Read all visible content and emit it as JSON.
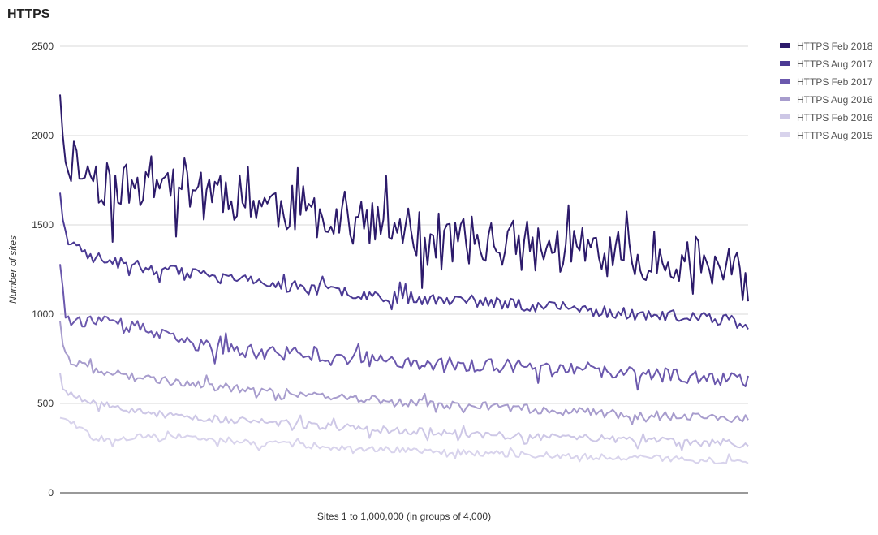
{
  "chart_data": {
    "type": "line",
    "title": "HTTPS",
    "xlabel": "Sites 1 to 1,000,000 (in groups of 4,000)",
    "ylabel": "Number of sites",
    "ylim": [
      0,
      2500
    ],
    "yticks": [
      0,
      500,
      1000,
      1500,
      2000,
      2500
    ],
    "ytick_labels": [
      "0",
      "500",
      "1000",
      "1500",
      "2000",
      "2500"
    ],
    "x_count": 250,
    "grid": true,
    "legend_position": "right",
    "series": [
      {
        "name": "HTTPS Feb 2018",
        "color": "#2d1b6b",
        "trend": [
          [
            0,
            2230
          ],
          [
            1,
            2000
          ],
          [
            2,
            1850
          ],
          [
            5,
            1870
          ],
          [
            10,
            1790
          ],
          [
            20,
            1700
          ],
          [
            30,
            1740
          ],
          [
            40,
            1760
          ],
          [
            60,
            1680
          ],
          [
            80,
            1600
          ],
          [
            100,
            1550
          ],
          [
            120,
            1470
          ],
          [
            140,
            1420
          ],
          [
            160,
            1400
          ],
          [
            180,
            1360
          ],
          [
            200,
            1340
          ],
          [
            220,
            1320
          ],
          [
            230,
            1300
          ],
          [
            240,
            1250
          ],
          [
            249,
            1200
          ]
        ],
        "noise": 140,
        "seed": 11
      },
      {
        "name": "HTTPS Aug 2017",
        "color": "#4b3a94",
        "trend": [
          [
            0,
            1680
          ],
          [
            1,
            1530
          ],
          [
            3,
            1400
          ],
          [
            10,
            1330
          ],
          [
            20,
            1290
          ],
          [
            40,
            1240
          ],
          [
            60,
            1200
          ],
          [
            80,
            1160
          ],
          [
            100,
            1130
          ],
          [
            120,
            1100
          ],
          [
            140,
            1080
          ],
          [
            160,
            1060
          ],
          [
            180,
            1040
          ],
          [
            200,
            1010
          ],
          [
            220,
            990
          ],
          [
            240,
            970
          ],
          [
            249,
            950
          ]
        ],
        "noise": 35,
        "seed": 23
      },
      {
        "name": "HTTPS Feb 2017",
        "color": "#6b58ad",
        "trend": [
          [
            0,
            1280
          ],
          [
            1,
            1150
          ],
          [
            2,
            980
          ],
          [
            10,
            960
          ],
          [
            20,
            940
          ],
          [
            30,
            920
          ],
          [
            40,
            860
          ],
          [
            60,
            800
          ],
          [
            80,
            780
          ],
          [
            100,
            760
          ],
          [
            120,
            740
          ],
          [
            140,
            720
          ],
          [
            160,
            710
          ],
          [
            180,
            690
          ],
          [
            200,
            670
          ],
          [
            220,
            660
          ],
          [
            240,
            640
          ],
          [
            249,
            630
          ]
        ],
        "noise": 40,
        "seed": 37
      },
      {
        "name": "HTTPS Aug 2016",
        "color": "#a79ccd",
        "trend": [
          [
            0,
            960
          ],
          [
            1,
            830
          ],
          [
            3,
            740
          ],
          [
            10,
            700
          ],
          [
            20,
            670
          ],
          [
            30,
            640
          ],
          [
            40,
            620
          ],
          [
            60,
            590
          ],
          [
            80,
            560
          ],
          [
            100,
            540
          ],
          [
            120,
            510
          ],
          [
            140,
            490
          ],
          [
            160,
            480
          ],
          [
            180,
            460
          ],
          [
            200,
            440
          ],
          [
            220,
            430
          ],
          [
            240,
            420
          ],
          [
            249,
            410
          ]
        ],
        "noise": 25,
        "seed": 41
      },
      {
        "name": "HTTPS Feb 2016",
        "color": "#cdc7e6",
        "trend": [
          [
            0,
            670
          ],
          [
            1,
            580
          ],
          [
            5,
            550
          ],
          [
            10,
            520
          ],
          [
            20,
            480
          ],
          [
            30,
            450
          ],
          [
            40,
            430
          ],
          [
            60,
            410
          ],
          [
            80,
            390
          ],
          [
            100,
            370
          ],
          [
            120,
            350
          ],
          [
            140,
            340
          ],
          [
            160,
            320
          ],
          [
            180,
            310
          ],
          [
            200,
            300
          ],
          [
            220,
            290
          ],
          [
            240,
            280
          ],
          [
            249,
            265
          ]
        ],
        "noise": 22,
        "seed": 53
      },
      {
        "name": "HTTPS Aug 2015",
        "color": "#d8d3ec",
        "trend": [
          [
            0,
            420
          ],
          [
            3,
            410
          ],
          [
            8,
            360
          ],
          [
            12,
            310
          ],
          [
            20,
            300
          ],
          [
            30,
            320
          ],
          [
            40,
            310
          ],
          [
            60,
            290
          ],
          [
            80,
            270
          ],
          [
            100,
            255
          ],
          [
            120,
            240
          ],
          [
            140,
            230
          ],
          [
            160,
            220
          ],
          [
            180,
            210
          ],
          [
            200,
            200
          ],
          [
            220,
            190
          ],
          [
            240,
            180
          ],
          [
            249,
            175
          ]
        ],
        "noise": 18,
        "seed": 67
      }
    ]
  }
}
